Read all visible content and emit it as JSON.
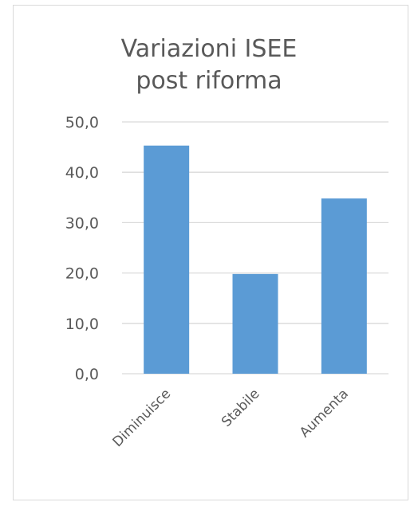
{
  "chart_data": {
    "type": "bar",
    "title_lines": [
      "Variazioni ISEE",
      "post riforma"
    ],
    "categories": [
      "Diminuisce",
      "Stabile",
      "Aumenta"
    ],
    "values": [
      45.3,
      19.8,
      34.8
    ],
    "ylim": [
      0,
      50
    ],
    "yticks": [
      "0,0",
      "10,0",
      "20,0",
      "30,0",
      "40,0",
      "50,0"
    ],
    "grid": true,
    "legend": "none",
    "bar_color": "#5b9bd5",
    "grid_color": "#d9d9d9",
    "text_color": "#595959"
  }
}
